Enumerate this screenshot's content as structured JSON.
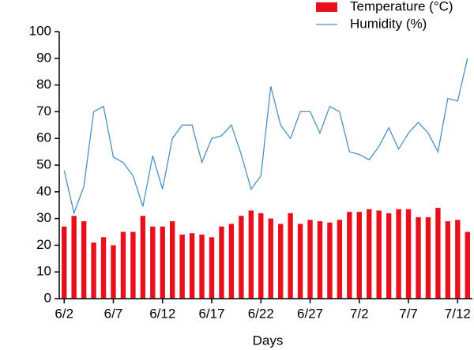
{
  "chart_data": {
    "type": "bar_line",
    "xlabel": "Days",
    "categories": [
      "6/2",
      null,
      null,
      null,
      null,
      "6/7",
      null,
      null,
      null,
      null,
      "6/12",
      null,
      null,
      null,
      null,
      "6/17",
      null,
      null,
      null,
      null,
      "6/22",
      null,
      null,
      null,
      null,
      "6/27",
      null,
      null,
      null,
      null,
      "7/2",
      null,
      null,
      null,
      null,
      "7/7",
      null,
      null,
      null,
      null,
      "7/12",
      null
    ],
    "series": [
      {
        "name": "Temperature (°C)",
        "type": "bar",
        "color": "#e8101c",
        "values": [
          27,
          31,
          29,
          21,
          23,
          20,
          25,
          25,
          31,
          27,
          27,
          29,
          24,
          24.5,
          24,
          23,
          27,
          28,
          31,
          33,
          32,
          30,
          28,
          32,
          28,
          29.5,
          29,
          28.5,
          29.5,
          32.5,
          32.5,
          33.5,
          33,
          32,
          33.5,
          33.5,
          30.5,
          30.5,
          34,
          29,
          29.5,
          25
        ]
      },
      {
        "name": "Humidity (%)",
        "type": "line",
        "color": "#4a90c8",
        "values": [
          48,
          32,
          42,
          70,
          72,
          53,
          51,
          46,
          34.5,
          53.5,
          41,
          60,
          65,
          65,
          51,
          60,
          61,
          65,
          54,
          41,
          46,
          79.5,
          65,
          60,
          70,
          70,
          62,
          72,
          70,
          55,
          54,
          52,
          57,
          64,
          56,
          62,
          66,
          62,
          55,
          75,
          74,
          90
        ]
      }
    ],
    "ylim": [
      0,
      100
    ],
    "yticks": [
      0,
      10,
      20,
      30,
      40,
      50,
      60,
      70,
      80,
      90,
      100
    ],
    "legend": "top-right"
  }
}
